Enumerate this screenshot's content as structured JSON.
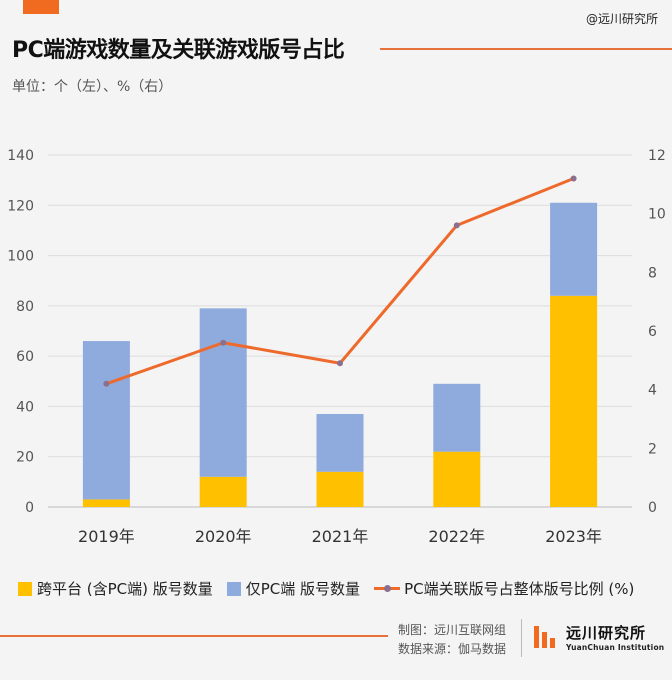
{
  "header": {
    "watermark": "@远川研究所",
    "title": "PC端游戏数量及关联游戏版号占比",
    "unit": "单位：个（左）、%（右）"
  },
  "chart_data": {
    "type": "bar",
    "stacked": true,
    "categories": [
      "2019年",
      "2020年",
      "2021年",
      "2022年",
      "2023年"
    ],
    "series": [
      {
        "name": "跨平台 (含PC端) 版号数量",
        "type": "bar",
        "axis": "left",
        "color": "#ffc000",
        "values": [
          3,
          12,
          14,
          22,
          84
        ]
      },
      {
        "name": "仅PC端 版号数量",
        "type": "bar",
        "axis": "left",
        "color": "#8faadc",
        "values": [
          63,
          67,
          23,
          27,
          37
        ]
      },
      {
        "name": "PC端关联版号占整体版号比例 (%)",
        "type": "line",
        "axis": "right",
        "color": "#ee6a2c",
        "values": [
          4.2,
          5.6,
          4.9,
          9.6,
          11.2
        ]
      }
    ],
    "y_left": {
      "min": 0,
      "max": 140,
      "ticks": [
        0,
        20,
        40,
        60,
        80,
        100,
        120,
        140
      ]
    },
    "y_right": {
      "min": 0,
      "max": 12,
      "ticks": [
        0,
        2,
        4,
        6,
        8,
        10,
        12
      ]
    },
    "grid": true,
    "legend_position": "bottom"
  },
  "footer": {
    "maker": "制图：远川互联网组",
    "source": "数据来源：伽马数据",
    "logo_cn": "远川研究所",
    "logo_en": "YuanChuan Institution"
  }
}
